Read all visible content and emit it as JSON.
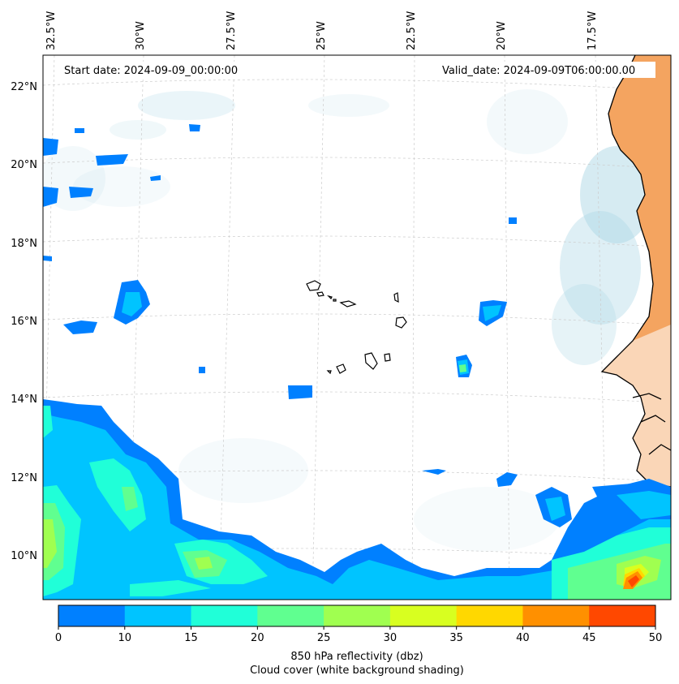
{
  "map": {
    "start_date": "Start date: 2024-09-09_00:00:00",
    "valid_date": "Valid_date: 2024-09-09T06:00:00.00",
    "lon_labels": [
      "32.5°W",
      "30°W",
      "27.5°W",
      "25°W",
      "22.5°W",
      "20°W",
      "17.5°W"
    ],
    "lat_labels": [
      "22°N",
      "20°N",
      "18°N",
      "16°N",
      "14°N",
      "12°N",
      "10°N"
    ]
  },
  "colorbar": {
    "ticks": [
      "0",
      "10",
      "15",
      "20",
      "25",
      "30",
      "35",
      "40",
      "45",
      "50"
    ],
    "colors": [
      "#0080ff",
      "#00c4ff",
      "#20ffd8",
      "#60ff90",
      "#a0ff50",
      "#d8ff20",
      "#ffd800",
      "#ff9000",
      "#ff4800"
    ],
    "label_line1": "850 hPa reflectivity (dbz)",
    "label_line2": "Cloud cover (white background shading)"
  },
  "palette": {
    "land": "#f4a460",
    "cloud": "#add8e6",
    "coast": "#000000"
  }
}
